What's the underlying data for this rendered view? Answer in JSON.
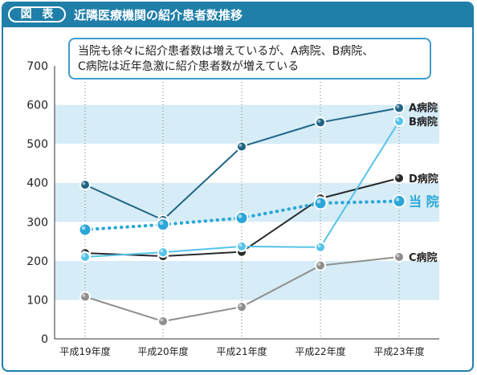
{
  "header": {
    "badge": "図 表",
    "title": "近隣医療機関の紹介患者数推移"
  },
  "callout": {
    "line1": "当院も徐々に紹介患者数は増えているが、A病院、B病院、",
    "line2": "C病院は近年急激に紹介患者数が増えている"
  },
  "chart_data": {
    "type": "line",
    "categories": [
      "平成19年度",
      "平成20年度",
      "平成21年度",
      "平成22年度",
      "平成23年度"
    ],
    "ylim": [
      0,
      700
    ],
    "yticks": [
      0,
      100,
      200,
      300,
      400,
      500,
      600,
      700
    ],
    "grid": "horizontal bands, vertical dotted lines",
    "series": [
      {
        "name": "A病院",
        "values": [
          395,
          305,
          493,
          555,
          592
        ],
        "color": "#1f6585",
        "style": "solid"
      },
      {
        "name": "B病院",
        "values": [
          210,
          222,
          237,
          235,
          558
        ],
        "color": "#55c3ea",
        "style": "solid"
      },
      {
        "name": "D病院",
        "values": [
          220,
          212,
          223,
          360,
          412
        ],
        "color": "#2a2a2a",
        "style": "solid"
      },
      {
        "name": "当 院",
        "values": [
          280,
          293,
          310,
          348,
          353
        ],
        "color": "#2aa6d8",
        "style": "dotted"
      },
      {
        "name": "C病院",
        "values": [
          108,
          45,
          82,
          188,
          210
        ],
        "color": "#8e8e8e",
        "style": "solid"
      }
    ]
  }
}
